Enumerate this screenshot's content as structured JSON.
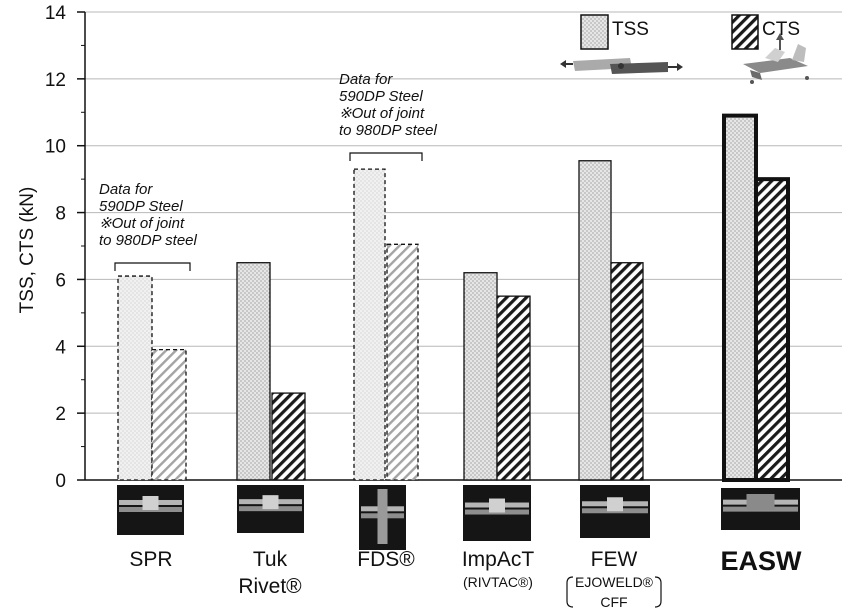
{
  "chart_data": {
    "type": "bar",
    "ylabel": "TSS, CTS  (kN)",
    "ylim": [
      0,
      14
    ],
    "yticks": [
      "0",
      "2",
      "4",
      "6",
      "8",
      "10",
      "12",
      "14"
    ],
    "grid": true,
    "legend_position": "top-right",
    "categories": [
      {
        "label": "SPR",
        "sub": [],
        "bold": false
      },
      {
        "label": "Tuk",
        "label2": "Rivet®",
        "sub": [],
        "bold": false
      },
      {
        "label": "FDS®",
        "sub": [],
        "bold": false
      },
      {
        "label": "ImpAcT",
        "sub": [
          "(RIVTAC®)"
        ],
        "bold": false
      },
      {
        "label": "FEW",
        "sub": [
          "EJOWELD®",
          "CFF"
        ],
        "bold": false
      },
      {
        "label": "EASW",
        "sub": [],
        "bold": true
      }
    ],
    "series": [
      {
        "name": "TSS",
        "values": [
          6.1,
          6.5,
          9.3,
          6.2,
          9.55,
          10.9
        ],
        "pattern": "dots"
      },
      {
        "name": "CTS",
        "values": [
          3.9,
          2.6,
          7.05,
          5.5,
          6.5,
          9.0
        ],
        "pattern": "hatch"
      }
    ],
    "faded_categories": [
      0,
      2
    ],
    "highlight_category": 5,
    "annotations": [
      {
        "category": 0,
        "lines": [
          "Data for",
          "590DP Steel",
          "※Out of joint",
          "   to 980DP steel"
        ]
      },
      {
        "category": 2,
        "lines": [
          "Data for",
          "590DP Steel",
          "※Out of joint",
          "   to 980DP steel"
        ]
      }
    ]
  },
  "colors": {
    "tss_fill": "#e4e4e4",
    "tss_dot": "#8a8a8a",
    "cts_stripe": "#1a1a1a",
    "faded_stripe": "#9a9a9a",
    "grid": "#b8b8b8"
  }
}
